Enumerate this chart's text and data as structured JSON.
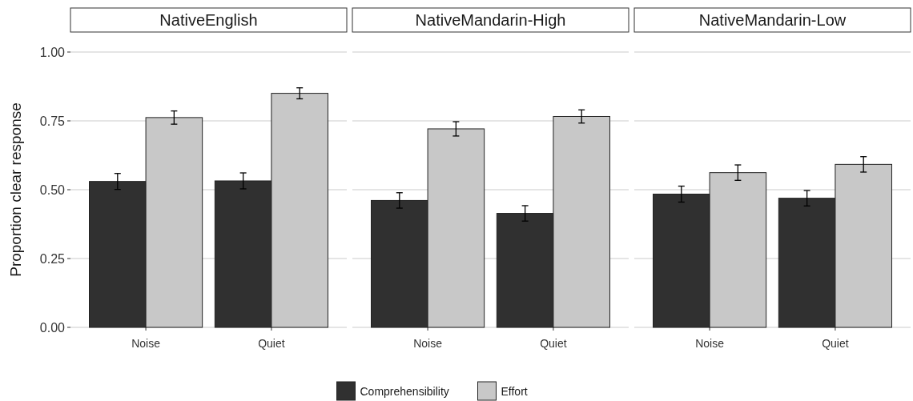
{
  "chart_data": [
    {
      "type": "bar",
      "title": "NativeEnglish",
      "ylabel": "Proportion clear response",
      "categories": [
        "Noise",
        "Quiet"
      ],
      "series": [
        {
          "color": "#303030",
          "values": [
            0.53,
            0.532
          ],
          "errors": [
            0.029,
            0.029
          ]
        },
        {
          "color": "#c8c8c8",
          "values": [
            0.762,
            0.85
          ],
          "errors": [
            0.024,
            0.02
          ]
        }
      ],
      "ylim": [
        0,
        1
      ],
      "yticks": [
        {
          "value": 0,
          "label": "0.00"
        },
        {
          "value": 0.25,
          "label": "0.25"
        },
        {
          "value": 0.5,
          "label": "0.50"
        },
        {
          "value": 0.75,
          "label": "0.75"
        },
        {
          "value": 1,
          "label": "1.00"
        }
      ],
      "grid": "y",
      "legend": false
    },
    {
      "type": "bar",
      "title": "NativeMandarin-High",
      "categories": [
        "Noise",
        "Quiet"
      ],
      "series": [
        {
          "name": "Comprehensibility",
          "color": "#303030",
          "values": [
            0.461,
            0.414
          ],
          "errors": [
            0.028,
            0.028
          ]
        },
        {
          "name": "Effort",
          "color": "#c8c8c8",
          "values": [
            0.721,
            0.766
          ],
          "errors": [
            0.026,
            0.024
          ]
        }
      ],
      "ylim": [
        0,
        1
      ],
      "yticks": [
        0,
        0.25,
        0.5,
        0.75,
        1
      ],
      "grid": "y",
      "tick_labels": "x",
      "legend": "bottom"
    },
    {
      "type": "bar",
      "title": "NativeMandarin-Low",
      "categories": [
        "Noise",
        "Quiet"
      ],
      "series": [
        {
          "color": "#303030",
          "values": [
            0.484,
            0.469
          ],
          "errors": [
            0.029,
            0.028
          ]
        },
        {
          "color": "#c8c8c8",
          "values": [
            0.562,
            0.592
          ],
          "errors": [
            0.028,
            0.028
          ]
        }
      ],
      "ylim": [
        0,
        1
      ],
      "yticks": [
        0,
        0.25,
        0.5,
        0.75,
        1
      ],
      "grid": "y",
      "tick_labels": "x",
      "legend": false
    }
  ]
}
